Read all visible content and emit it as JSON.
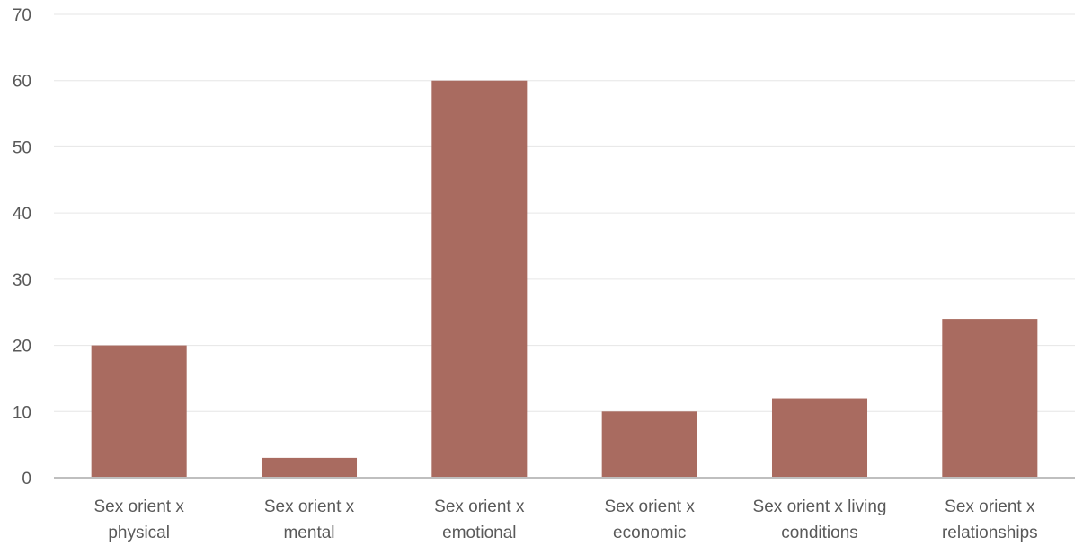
{
  "chart_data": {
    "type": "bar",
    "categories": [
      [
        "Sex orient x",
        "physical"
      ],
      [
        "Sex orient x",
        "mental"
      ],
      [
        "Sex orient x",
        "emotional"
      ],
      [
        "Sex orient x",
        "economic"
      ],
      [
        "Sex orient x living",
        "conditions"
      ],
      [
        "Sex orient x",
        "relationships"
      ]
    ],
    "values": [
      20,
      3,
      60,
      10,
      12,
      24
    ],
    "ylim": [
      0,
      70
    ],
    "yticks": [
      0,
      10,
      20,
      30,
      40,
      50,
      60,
      70
    ],
    "title": "",
    "xlabel": "",
    "ylabel": "",
    "grid": true,
    "legend": "none",
    "colors": {
      "bar": "#a96b60",
      "grid": "#e6e6e6",
      "axis": "#bfbfbf",
      "text": "#595959"
    }
  }
}
